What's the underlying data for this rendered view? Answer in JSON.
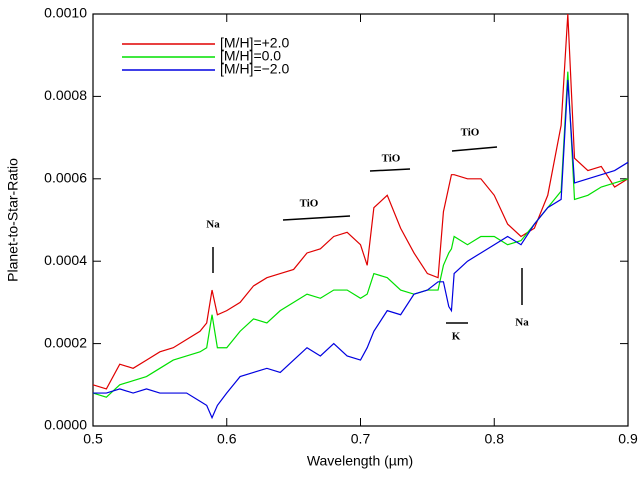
{
  "chart_data": {
    "type": "line",
    "xlabel": "Wavelength (µm)",
    "ylabel": "Planet-to-Star-Ratio",
    "x": [
      0.5,
      0.51,
      0.52,
      0.53,
      0.54,
      0.55,
      0.56,
      0.57,
      0.58,
      0.585,
      0.589,
      0.593,
      0.6,
      0.61,
      0.62,
      0.63,
      0.64,
      0.65,
      0.66,
      0.67,
      0.68,
      0.69,
      0.7,
      0.705,
      0.71,
      0.72,
      0.73,
      0.74,
      0.75,
      0.758,
      0.762,
      0.766,
      0.768,
      0.77,
      0.78,
      0.79,
      0.8,
      0.81,
      0.82,
      0.83,
      0.84,
      0.85,
      0.855,
      0.86,
      0.87,
      0.88,
      0.89,
      0.9
    ],
    "series": [
      {
        "name": "[M/H]=+2.0",
        "color": "#e00000",
        "values": [
          0.0001,
          9e-05,
          0.00015,
          0.00014,
          0.00016,
          0.00018,
          0.00019,
          0.00021,
          0.00023,
          0.00025,
          0.00033,
          0.00027,
          0.00028,
          0.0003,
          0.00034,
          0.00036,
          0.00037,
          0.00038,
          0.00042,
          0.00043,
          0.00046,
          0.00047,
          0.00044,
          0.00039,
          0.00053,
          0.00056,
          0.00048,
          0.00042,
          0.00037,
          0.00036,
          0.00052,
          0.00058,
          0.00061,
          0.00061,
          0.0006,
          0.0006,
          0.00056,
          0.00049,
          0.00046,
          0.00048,
          0.00056,
          0.00073,
          0.001,
          0.00065,
          0.00062,
          0.00063,
          0.00058,
          0.0006
        ]
      },
      {
        "name": "[M/H]=0.0",
        "color": "#00e000",
        "values": [
          8e-05,
          7e-05,
          0.0001,
          0.00011,
          0.00012,
          0.00014,
          0.00016,
          0.00017,
          0.00018,
          0.00019,
          0.00027,
          0.00019,
          0.00019,
          0.00023,
          0.00026,
          0.00025,
          0.00028,
          0.0003,
          0.00032,
          0.00031,
          0.00033,
          0.00033,
          0.00031,
          0.00032,
          0.00037,
          0.00036,
          0.00033,
          0.00032,
          0.00033,
          0.00033,
          0.00039,
          0.00042,
          0.00043,
          0.00046,
          0.00044,
          0.00046,
          0.00046,
          0.00044,
          0.00045,
          0.00049,
          0.00053,
          0.00057,
          0.00086,
          0.00055,
          0.00056,
          0.00058,
          0.00059,
          0.0006
        ]
      },
      {
        "name": "[M/H]=−2.0",
        "color": "#0000e0",
        "values": [
          8e-05,
          8e-05,
          9e-05,
          8e-05,
          9e-05,
          8e-05,
          8e-05,
          8e-05,
          6e-05,
          5e-05,
          2e-05,
          5e-05,
          8e-05,
          0.00012,
          0.00013,
          0.00014,
          0.00013,
          0.00016,
          0.00019,
          0.00017,
          0.0002,
          0.00017,
          0.00016,
          0.00019,
          0.00023,
          0.00028,
          0.00027,
          0.00032,
          0.00033,
          0.00035,
          0.00035,
          0.00029,
          0.00028,
          0.00037,
          0.0004,
          0.00042,
          0.00044,
          0.00046,
          0.00044,
          0.00049,
          0.00053,
          0.00055,
          0.00084,
          0.00059,
          0.0006,
          0.00061,
          0.00062,
          0.00064
        ]
      }
    ],
    "annotations": [
      "Na",
      "TiO",
      "TiO",
      "TiO",
      "K",
      "Na"
    ],
    "xlim": [
      0.5,
      0.9
    ],
    "xticks": [
      0.5,
      0.6,
      0.7,
      0.8,
      0.9
    ],
    "ylim": [
      0,
      0.001
    ],
    "yticks": [
      {
        "value": 0,
        "label": "0.0000"
      },
      {
        "value": 0.0002,
        "label": "0.0002"
      },
      {
        "value": 0.0004,
        "label": "0.0004"
      },
      {
        "value": 0.0006,
        "label": "0.0006"
      },
      {
        "value": 0.0008,
        "label": "0.0008"
      },
      {
        "value": 0.001,
        "label": "0.0010"
      }
    ],
    "legend": "upper-left",
    "grid": false
  }
}
